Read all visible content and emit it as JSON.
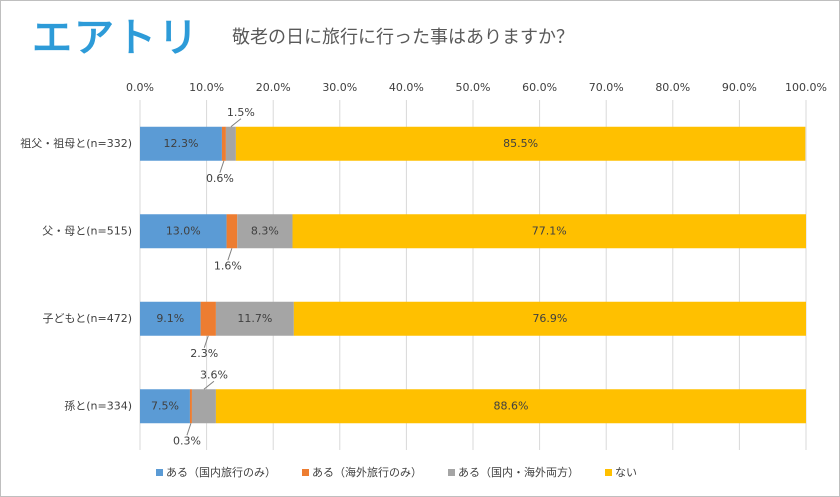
{
  "logo": "エアトリ",
  "chart_data": {
    "type": "stacked-bar-horizontal",
    "title": "敬老の日に旅行に行った事はありますか？",
    "categories": [
      "祖父・祖母と(n=332)",
      "父・母と(n=515)",
      "子どもと(n=472)",
      "孫と(n=334)"
    ],
    "series": [
      {
        "name": "ある（国内旅行のみ）",
        "color": "#5b9bd5",
        "values": [
          12.3,
          13.0,
          9.1,
          7.5
        ],
        "value_labels": [
          "12.3%",
          "13.0%",
          "9.1%",
          "7.5%"
        ]
      },
      {
        "name": "ある（海外旅行のみ）",
        "color": "#ed7d31",
        "values": [
          0.6,
          1.6,
          2.3,
          0.3
        ],
        "value_labels": [
          "0.6%",
          "1.6%",
          "2.3%",
          "0.3%"
        ]
      },
      {
        "name": "ある（国内・海外両方）",
        "color": "#a5a5a5",
        "values": [
          1.5,
          8.3,
          11.7,
          3.6
        ],
        "value_labels": [
          "1.5%",
          "8.3%",
          "11.7%",
          "3.6%"
        ]
      },
      {
        "name": "ない",
        "color": "#ffc000",
        "values": [
          85.5,
          77.1,
          76.9,
          88.6
        ],
        "value_labels": [
          "85.5%",
          "77.1%",
          "76.9%",
          "88.6%"
        ]
      }
    ],
    "xlim": [
      0,
      100
    ],
    "xticks": [
      {
        "value": 0,
        "label": "0.0%"
      },
      {
        "value": 10,
        "label": "10.0%"
      },
      {
        "value": 20,
        "label": "20.0%"
      },
      {
        "value": 30,
        "label": "30.0%"
      },
      {
        "value": 40,
        "label": "40.0%"
      },
      {
        "value": 50,
        "label": "50.0%"
      },
      {
        "value": 60,
        "label": "60.0%"
      },
      {
        "value": 70,
        "label": "70.0%"
      },
      {
        "value": 80,
        "label": "80.0%"
      },
      {
        "value": 90,
        "label": "90.0%"
      },
      {
        "value": 100,
        "label": "100.0%"
      }
    ],
    "grid": true,
    "legend": "bottom"
  }
}
